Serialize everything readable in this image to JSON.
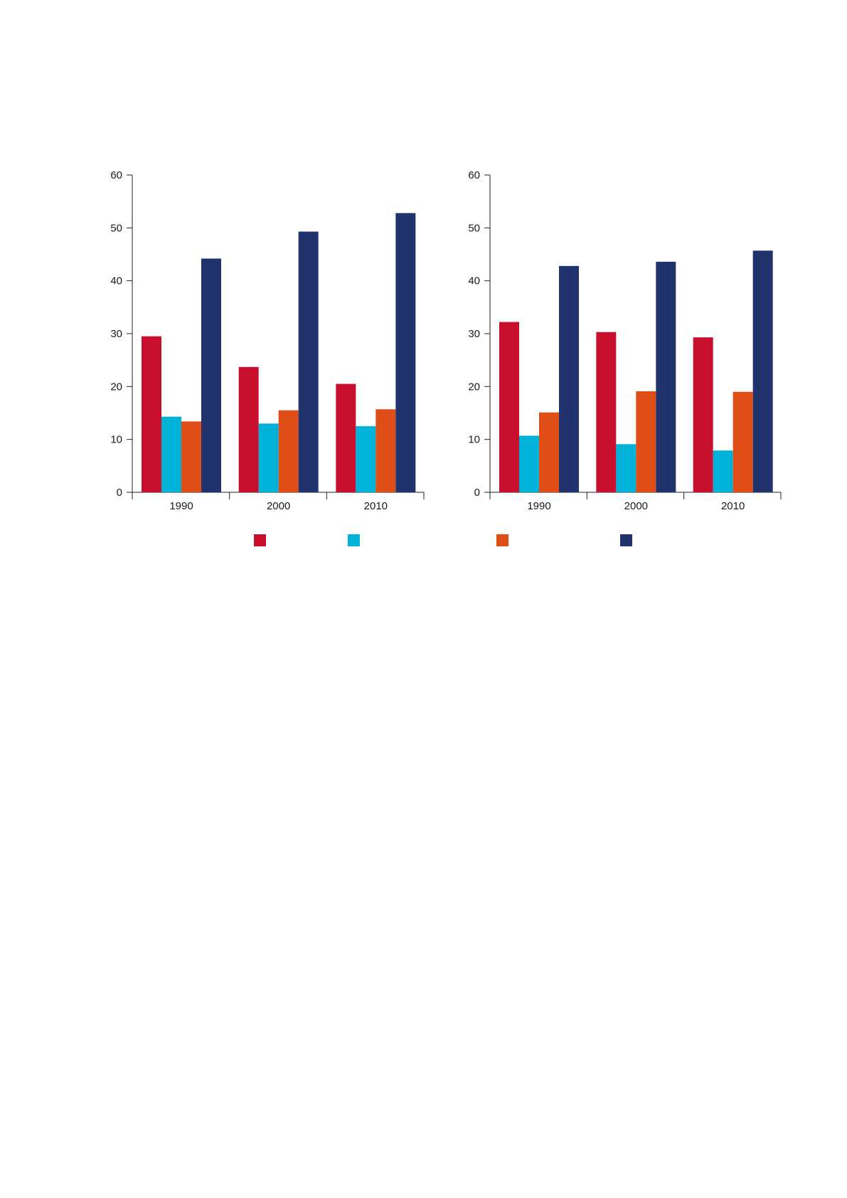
{
  "chart_data": [
    {
      "type": "bar",
      "categories": [
        "1990",
        "2000",
        "2010"
      ],
      "ylim": [
        0,
        60
      ],
      "yticks": [
        0,
        10,
        20,
        30,
        40,
        50,
        60
      ],
      "series": [
        {
          "color": "#c8102e",
          "values": [
            29.5,
            23.7,
            20.5
          ]
        },
        {
          "color": "#00b2d8",
          "values": [
            14.3,
            13.0,
            12.5
          ]
        },
        {
          "color": "#e04e18",
          "values": [
            13.4,
            15.5,
            15.7
          ]
        },
        {
          "color": "#21336d",
          "values": [
            44.2,
            49.3,
            52.8
          ]
        }
      ],
      "title": "",
      "xlabel": "",
      "ylabel": "",
      "grid": false
    },
    {
      "type": "bar",
      "categories": [
        "1990",
        "2000",
        "2010"
      ],
      "ylim": [
        0,
        60
      ],
      "yticks": [
        0,
        10,
        20,
        30,
        40,
        50,
        60
      ],
      "series": [
        {
          "color": "#c8102e",
          "values": [
            32.2,
            30.3,
            29.3
          ]
        },
        {
          "color": "#00b2d8",
          "values": [
            10.7,
            9.1,
            7.9
          ]
        },
        {
          "color": "#e04e18",
          "values": [
            15.1,
            19.1,
            19.0
          ]
        },
        {
          "color": "#21336d",
          "values": [
            42.8,
            43.6,
            45.7
          ]
        }
      ],
      "title": "",
      "xlabel": "",
      "ylabel": "",
      "grid": false
    }
  ],
  "legend": [
    {
      "color": "#c8102e",
      "label": ""
    },
    {
      "color": "#00b2d8",
      "label": ""
    },
    {
      "color": "#e04e18",
      "label": ""
    },
    {
      "color": "#21336d",
      "label": ""
    }
  ]
}
